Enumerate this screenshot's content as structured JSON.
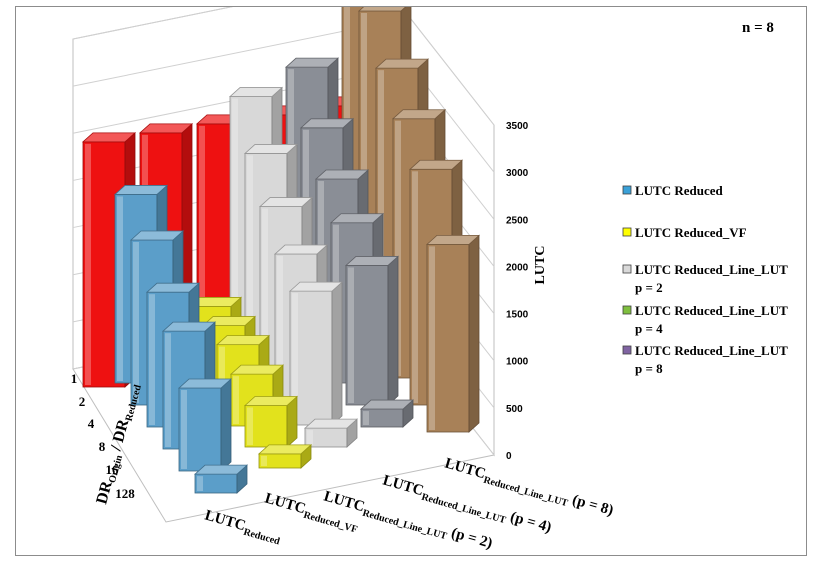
{
  "chart_data": {
    "type": "bar",
    "subtype": "3d-bar",
    "annotation": "n = 8",
    "zlabel": "LUTC",
    "zticks": [
      "0",
      "500",
      "1000",
      "1500",
      "2000",
      "2500",
      "3000",
      "3500"
    ],
    "zlim": [
      0,
      3500
    ],
    "x_axis_label": {
      "main": "DR",
      "sub1": "Origin",
      "sep": " / DR",
      "sub2": "Reduced"
    },
    "categories": [
      "1",
      "2",
      "4",
      "8",
      "16",
      "128"
    ],
    "series": [
      {
        "key": "reduced",
        "label_main": "LUTC",
        "label_sub": "Reduced",
        "color": "#5b9ec9",
        "values": [
          2000,
          1750,
          1430,
          1250,
          880,
          200
        ]
      },
      {
        "key": "reduced_vf",
        "label_main": "LUTC",
        "label_sub": "Reduced_VF",
        "color": "#e2e21c",
        "values": [
          600,
          620,
          640,
          550,
          440,
          150
        ]
      },
      {
        "key": "line_lut_p2",
        "label_main": "LUTC",
        "label_sub": "Reduced_Line_LUT",
        "label_suffix": " (p = 2)",
        "color": "#d8d8d8",
        "values": [
          2550,
          2180,
          1850,
          1580,
          1420,
          200
        ]
      },
      {
        "key": "line_lut_p4",
        "label_main": "LUTC",
        "label_sub": "Reduced_Line_LUT",
        "label_suffix": " (p = 4)",
        "color": "#8a8e96",
        "values": [
          2650,
          2240,
          1930,
          1700,
          1480,
          190
        ]
      },
      {
        "key": "line_lut_p8",
        "label_main": "LUTC",
        "label_sub": "Reduced_Line_LUT",
        "label_suffix": " (p = 8)",
        "color": "#a88158",
        "values": [
          3600,
          3320,
          3000,
          2750,
          2500,
          1990
        ]
      }
    ],
    "back_row": {
      "color": "#ee1111",
      "values": [
        2600,
        2600,
        2600,
        2600,
        2600
      ]
    },
    "legend": [
      {
        "text": "LUTC Reduced",
        "color": "#3aa1d8"
      },
      {
        "text": "LUTC Reduced_VF",
        "color": "#ffff00"
      },
      {
        "text": "LUTC Reduced_Line_LUT",
        "text2": "p = 2",
        "color": "#d9d9d9"
      },
      {
        "text": "LUTC Reduced_Line_LUT",
        "text2": "p = 4",
        "color": "#7fbf3f"
      },
      {
        "text": "LUTC Reduced_Line_LUT",
        "text2": "p = 8",
        "color": "#8064a2"
      }
    ],
    "legend_position": "right",
    "grid": true
  }
}
